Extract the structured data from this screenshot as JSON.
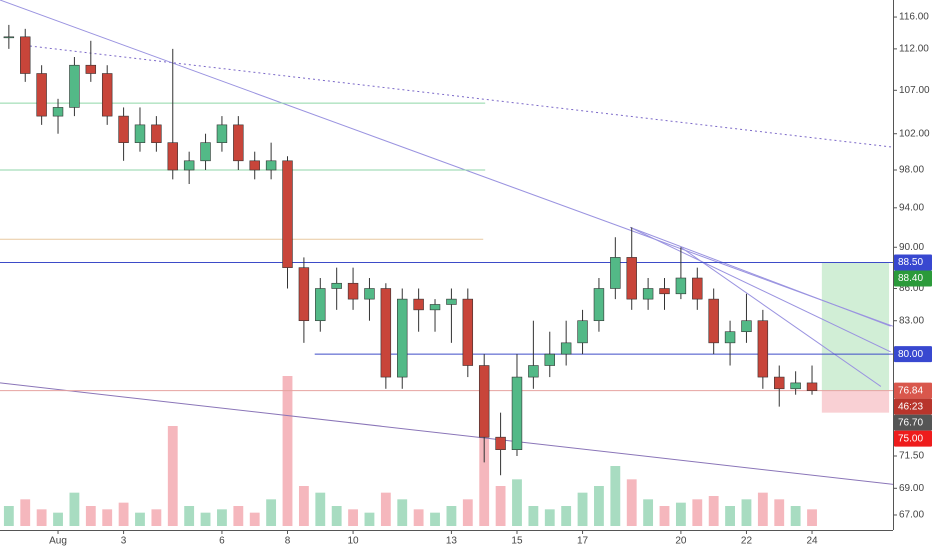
{
  "chart_data": {
    "type": "candlestick",
    "log_scale": true,
    "grid": false,
    "up_color": "#53b987",
    "down_color": "#c8453a",
    "volume_up_color": "#a8dcc1",
    "volume_down_color": "#f5b7bd",
    "xlim": [
      -0.77,
      26.47
    ],
    "ylim": [
      65.9,
      118.2
    ],
    "xticks": [
      {
        "value": 1,
        "label": "Aug"
      },
      3,
      6,
      8,
      10,
      13,
      15,
      17,
      20,
      22,
      24
    ],
    "yticks": [
      {
        "value": 116,
        "label": "116.00"
      },
      {
        "value": 112,
        "label": "112.00"
      },
      {
        "value": 107,
        "label": "107.00"
      },
      {
        "value": 102,
        "label": "102.00"
      },
      {
        "value": 98,
        "label": "98.00"
      },
      {
        "value": 94,
        "label": "94.00"
      },
      {
        "value": 90,
        "label": "90.00"
      },
      {
        "value": 86,
        "label": "86.00"
      },
      {
        "value": 83,
        "label": "83.00"
      },
      {
        "value": 71.5,
        "label": "71.50"
      },
      {
        "value": 69,
        "label": "69.00"
      },
      {
        "value": 67,
        "label": "67.00"
      }
    ],
    "x": [
      -0.5,
      0,
      0.5,
      1,
      1.5,
      2,
      2.5,
      3,
      3.5,
      4,
      4.5,
      5,
      5.5,
      6,
      6.5,
      7,
      7.5,
      8,
      8.5,
      9,
      9.5,
      10,
      10.5,
      11,
      11.5,
      12,
      12.5,
      13,
      13.5,
      14,
      14.5,
      15,
      15.5,
      16,
      16.5,
      17,
      17.5,
      18,
      18.5,
      19,
      19.5,
      20,
      20.5,
      21,
      21.5,
      22,
      22.5,
      23,
      23.5,
      24
    ],
    "open": [
      113.5,
      113.5,
      109,
      104,
      105,
      110,
      109,
      104,
      101,
      103,
      101,
      98,
      99,
      101,
      103,
      99,
      98,
      99,
      88,
      83,
      86,
      86.5,
      85,
      86,
      78,
      85,
      84,
      84.5,
      85,
      79,
      73,
      72,
      78,
      79,
      80,
      81,
      83,
      86,
      89,
      85,
      86,
      85.5,
      87,
      85,
      81,
      82,
      83,
      78,
      77,
      77.5
    ],
    "high": [
      115,
      114.5,
      110,
      106,
      111,
      113,
      110,
      105,
      105,
      104,
      112,
      100,
      102,
      104,
      104,
      100,
      101,
      99.5,
      89,
      87,
      88,
      88,
      87,
      86.5,
      86,
      86,
      85,
      86,
      86,
      80,
      75,
      80,
      83,
      82,
      83,
      84,
      87,
      91,
      92,
      87,
      87,
      90,
      88,
      86,
      83,
      85.5,
      84,
      79,
      78.5,
      79
    ],
    "low": [
      112,
      108,
      103,
      102,
      104,
      108,
      103,
      99,
      100,
      100,
      97,
      96.5,
      98,
      100,
      98,
      97,
      97,
      86,
      81,
      82,
      84,
      84,
      83,
      77,
      77,
      82,
      82,
      81,
      78,
      71,
      70,
      71.5,
      77,
      78,
      79,
      80,
      82,
      85,
      84,
      84,
      84,
      85,
      84,
      80,
      79,
      81,
      77,
      75.5,
      76.5,
      76.5
    ],
    "close": [
      113.5,
      109,
      104,
      105,
      110,
      109,
      104,
      101,
      103,
      101,
      98,
      99,
      101,
      103,
      99,
      98,
      99,
      88,
      83,
      86,
      86.5,
      85,
      86,
      78,
      85,
      84,
      84.5,
      85,
      79,
      73,
      72,
      78,
      79,
      80,
      81,
      83,
      86,
      89,
      85,
      86,
      85.5,
      87,
      85,
      81,
      82,
      83,
      78,
      77,
      77.5,
      76.84
    ],
    "volume": [
      6,
      8,
      5,
      4,
      10,
      6,
      5,
      7,
      4,
      5,
      30,
      6,
      4,
      5,
      6,
      4,
      8,
      45,
      12,
      10,
      6,
      5,
      4,
      10,
      8,
      5,
      4,
      6,
      8,
      30,
      12,
      14,
      6,
      5,
      6,
      10,
      12,
      18,
      14,
      8,
      6,
      7,
      8,
      9,
      6,
      8,
      10,
      8,
      6,
      5
    ],
    "lines": [
      {
        "from": [
          -0.16,
          112.5
        ],
        "to": [
          26.47,
          100.5
        ],
        "color": "#7b68c8",
        "dash": true
      },
      {
        "from": [
          -0.77,
          118.2
        ],
        "to": [
          26.47,
          82.5
        ],
        "color": "#9a93e0",
        "dash": false
      },
      {
        "from": [
          -0.77,
          77.5
        ],
        "to": [
          26.47,
          69.3
        ],
        "color": "#8a75b8",
        "dash": false
      },
      {
        "from": [
          18.45,
          92
        ],
        "to": [
          26.4,
          82.5
        ],
        "color": "#9a93e0",
        "dash": false
      },
      {
        "from": [
          18.45,
          92
        ],
        "to": [
          26.4,
          80.2
        ],
        "color": "#9a93e0",
        "dash": false
      },
      {
        "from": [
          20,
          90
        ],
        "to": [
          26.1,
          77.2
        ],
        "color": "#9a93e0",
        "dash": false
      },
      {
        "from": [
          -0.77,
          105.5
        ],
        "to": [
          14.03,
          105.5
        ],
        "color": "#8fd6a8",
        "dash": false
      },
      {
        "from": [
          -0.77,
          98
        ],
        "to": [
          14.03,
          98
        ],
        "color": "#8fd6a8",
        "dash": false
      },
      {
        "from": [
          -0.77,
          90.8
        ],
        "to": [
          13.97,
          90.8
        ],
        "color": "#e8c9a0",
        "dash": false
      },
      {
        "from": [
          -0.77,
          88.5
        ],
        "to": [
          26.47,
          88.5
        ],
        "color": "#3d4bc8",
        "dash": false
      },
      {
        "from": [
          8.83,
          80
        ],
        "to": [
          26.47,
          80
        ],
        "color": "#3d4bc8",
        "dash": false
      },
      {
        "from": [
          -0.77,
          76.84
        ],
        "to": [
          26.47,
          76.84
        ],
        "color": "#e6a3a0",
        "dash": false
      }
    ],
    "position": {
      "x": [
        24.3,
        26.35
      ],
      "target": 88.5,
      "entry": 76.84,
      "stop": 75.0,
      "profit_color": "#c9ebcf",
      "loss_color": "#f8c8cc"
    },
    "price_labels": [
      {
        "value": 88.5,
        "label": "88.50",
        "color": "#3848d0"
      },
      {
        "value": 88.4,
        "label": "88.40",
        "color": "#2b9a3a"
      },
      {
        "value": 80.0,
        "label": "80.00",
        "color": "#3848d0"
      },
      {
        "value": 76.84,
        "label": "76.84",
        "color": "#d9574c"
      },
      {
        "label": "46:23",
        "color": "#b8352c"
      },
      {
        "value": 76.7,
        "label": "76.70",
        "color": "#555555"
      },
      {
        "value": 75.0,
        "label": "75.00",
        "color": "#ee1c1c"
      }
    ]
  }
}
